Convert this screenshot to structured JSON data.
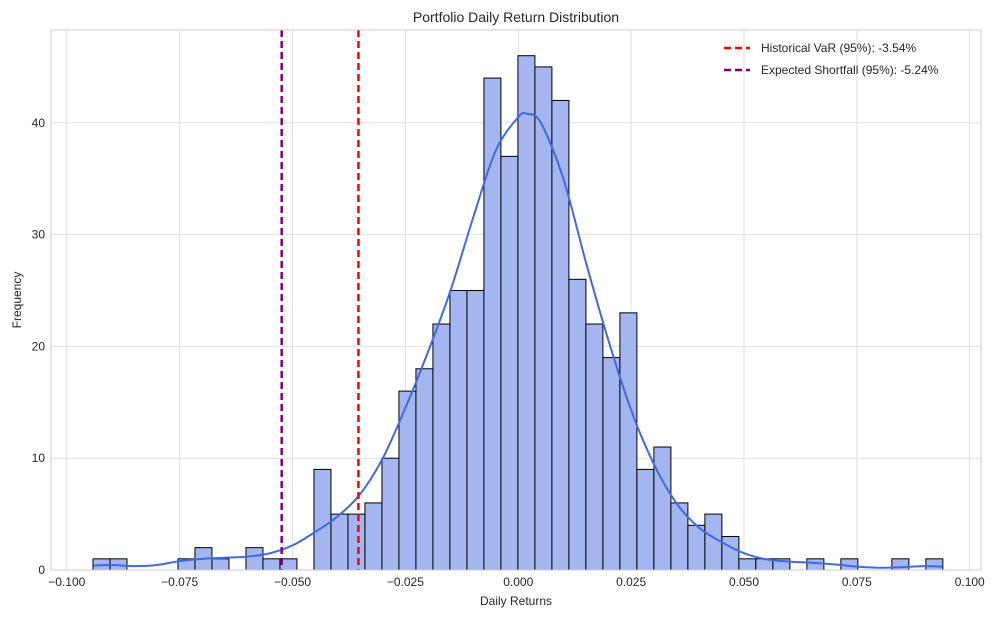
{
  "chart_data": {
    "type": "bar",
    "title": "Portfolio Daily Return Distribution",
    "xlabel": "Daily Returns",
    "ylabel": "Frequency",
    "xlim": [
      -0.1035,
      0.1025
    ],
    "ylim": [
      0,
      48.3
    ],
    "xticks": [
      -0.1,
      -0.075,
      -0.05,
      -0.025,
      0.0,
      0.025,
      0.05,
      0.075,
      0.1
    ],
    "xtick_labels": [
      "−0.100",
      "−0.075",
      "−0.050",
      "−0.025",
      "0.000",
      "0.025",
      "0.050",
      "0.075",
      "0.100"
    ],
    "yticks": [
      0,
      10,
      20,
      30,
      40
    ],
    "ytick_labels": [
      "0",
      "10",
      "20",
      "30",
      "40"
    ],
    "grid": true,
    "legend_position": "top-right",
    "histogram": {
      "bin_start": -0.0942,
      "bin_width": 0.003765,
      "counts": [
        1,
        1,
        0,
        0,
        0,
        1,
        2,
        1,
        0,
        2,
        1,
        1,
        0,
        9,
        5,
        5,
        6,
        10,
        16,
        18,
        22,
        25,
        25,
        44,
        37,
        46,
        45,
        42,
        26,
        22,
        19,
        23,
        9,
        11,
        6,
        4,
        5,
        3,
        1,
        1,
        1,
        0,
        1,
        0,
        1,
        0,
        0,
        1,
        0,
        1
      ],
      "fill_color": "#a3b6ef",
      "edge_color": "#000000"
    },
    "kde": {
      "color": "#4169e1",
      "x": [
        -0.094,
        -0.09,
        -0.085,
        -0.08,
        -0.075,
        -0.07,
        -0.065,
        -0.06,
        -0.055,
        -0.05,
        -0.045,
        -0.04,
        -0.035,
        -0.03,
        -0.025,
        -0.02,
        -0.015,
        -0.01,
        -0.005,
        0.0,
        0.002,
        0.005,
        0.01,
        0.015,
        0.02,
        0.025,
        0.03,
        0.035,
        0.04,
        0.045,
        0.05,
        0.055,
        0.06,
        0.065,
        0.07,
        0.075,
        0.08,
        0.085,
        0.09,
        0.094
      ],
      "y": [
        0.4,
        0.45,
        0.35,
        0.45,
        0.8,
        1.0,
        1.1,
        1.2,
        1.5,
        2.2,
        3.4,
        4.8,
        6.8,
        10.0,
        14.5,
        19.5,
        25.0,
        31.5,
        37.5,
        40.5,
        40.8,
        40.0,
        35.0,
        27.5,
        20.5,
        14.3,
        9.5,
        6.0,
        3.8,
        2.5,
        1.5,
        0.95,
        0.75,
        0.65,
        0.5,
        0.3,
        0.2,
        0.25,
        0.35,
        0.3
      ]
    },
    "vlines": [
      {
        "name": "Historical VaR (95%): -3.54%",
        "x": -0.0354,
        "color": "#ff0000"
      },
      {
        "name": "Expected Shortfall (95%): -5.24%",
        "x": -0.0524,
        "color": "#800080"
      }
    ]
  }
}
